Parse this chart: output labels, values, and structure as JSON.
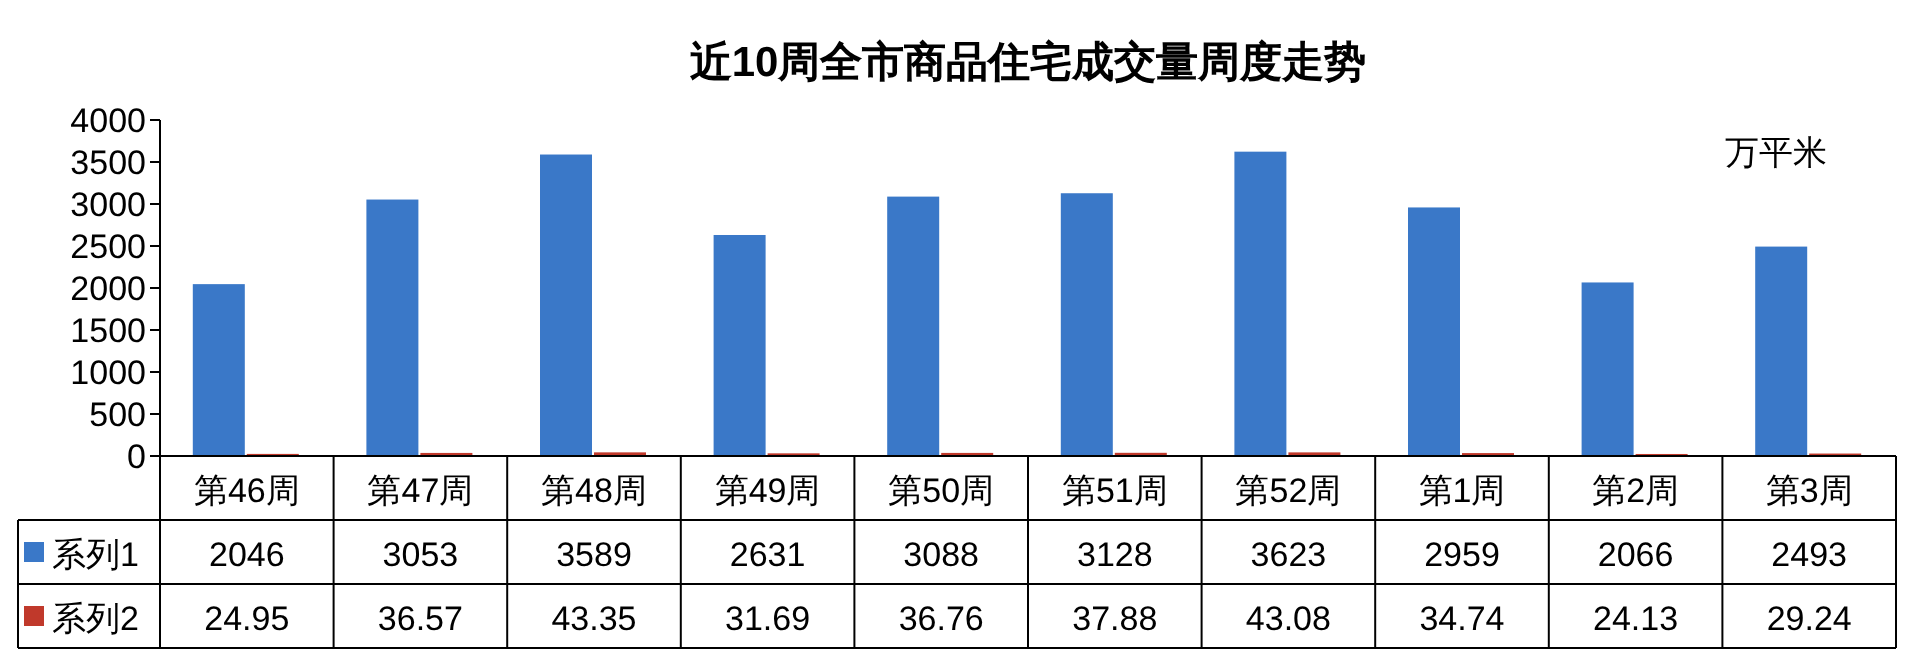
{
  "chart_data": {
    "type": "bar",
    "title": "近10周全市商品住宅成交量周度走势",
    "annotations": [
      "万平米"
    ],
    "categories": [
      "第46周",
      "第47周",
      "第48周",
      "第49周",
      "第50周",
      "第51周",
      "第52周",
      "第1周",
      "第2周",
      "第3周"
    ],
    "series": [
      {
        "name": "系列1",
        "color": "#3a78c8",
        "values": [
          2046,
          3053,
          3589,
          2631,
          3088,
          3128,
          3623,
          2959,
          2066,
          2493
        ]
      },
      {
        "name": "系列2",
        "color": "#c0392b",
        "values": [
          24.95,
          36.57,
          43.35,
          31.69,
          36.76,
          37.88,
          43.08,
          34.74,
          24.13,
          29.24
        ]
      }
    ],
    "ylim": [
      0,
      4000
    ],
    "yticks": [
      0,
      500,
      1000,
      1500,
      2000,
      2500,
      3000,
      3500,
      4000
    ],
    "grid": false,
    "legend": "bottom",
    "data_labels": true
  }
}
